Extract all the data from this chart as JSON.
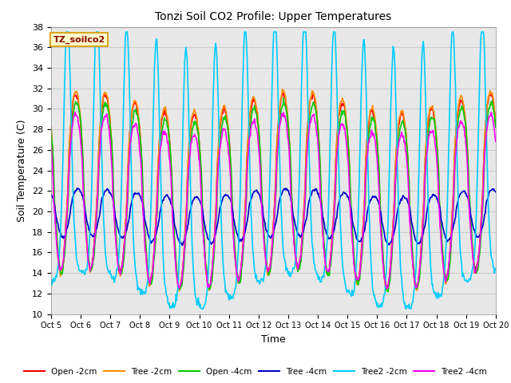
{
  "title": "Tonzi Soil CO2 Profile: Upper Temperatures",
  "xlabel": "Time",
  "ylabel": "Soil Temperature (C)",
  "ylim": [
    10,
    38
  ],
  "xlim": [
    0,
    15
  ],
  "x_tick_labels": [
    "Oct 5",
    "Oct 6",
    "Oct 7",
    "Oct 8",
    "Oct 9",
    "Oct 10",
    "Oct 11",
    "Oct 12",
    "Oct 13",
    "Oct 14",
    "Oct 15",
    "Oct 16",
    "Oct 17",
    "Oct 18",
    "Oct 19",
    "Oct 20"
  ],
  "annotation_text": "TZ_soilco2",
  "annotation_color": "#8B0000",
  "annotation_bg": "#FFFFCC",
  "annotation_border": "#DAA520",
  "series": [
    {
      "label": "Open -2cm",
      "color": "#FF0000",
      "lw": 1.2
    },
    {
      "label": "Tree -2cm",
      "color": "#FF8C00",
      "lw": 1.2
    },
    {
      "label": "Open -4cm",
      "color": "#00CC00",
      "lw": 1.2
    },
    {
      "label": "Tree -4cm",
      "color": "#0000CC",
      "lw": 1.2
    },
    {
      "label": "Tree2 -2cm",
      "color": "#00CCFF",
      "lw": 1.2
    },
    {
      "label": "Tree2 -4cm",
      "color": "#FF00FF",
      "lw": 1.2
    }
  ],
  "grid_color": "#CCCCCC",
  "bg_color": "#E8E8E8",
  "n_points": 720
}
